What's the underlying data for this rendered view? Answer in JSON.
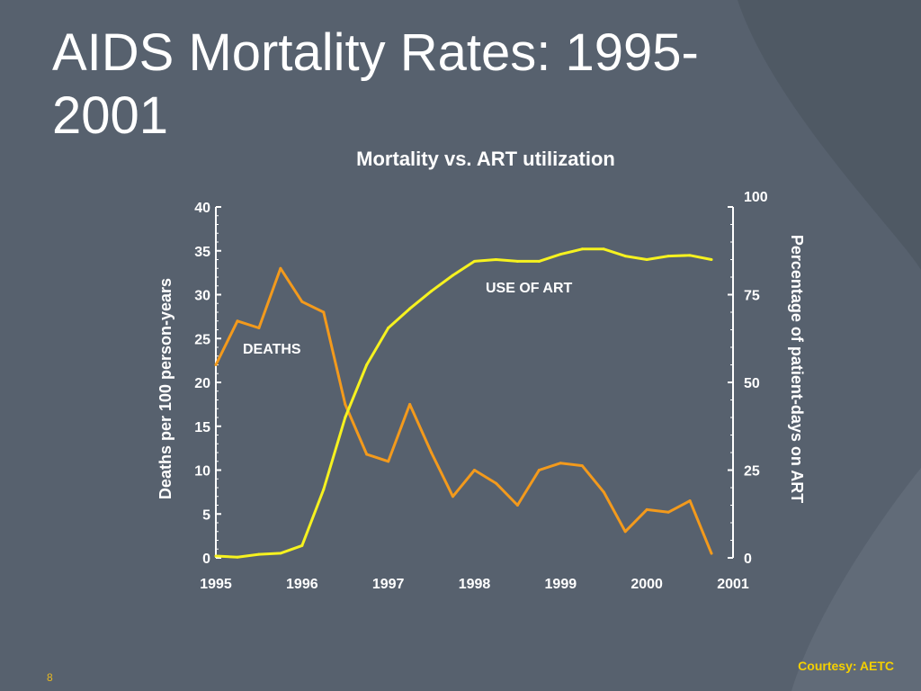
{
  "slide": {
    "title_line1": "AIDS Mortality Rates: 1995-",
    "title_line2": "2001",
    "courtesy": "Courtesy: AETC",
    "page_number": "8"
  },
  "colors": {
    "background": "#5a6572",
    "text": "#ffffff",
    "deaths_line": "#f39a1c",
    "art_line": "#f6f21f",
    "accent": "#f5d000"
  },
  "chart_data": {
    "type": "line",
    "title": "Mortality vs. ART utilization",
    "xlabel": "",
    "ylabel_left": "Deaths per 100 person-years",
    "ylabel_right": "Percentage of patient-days on ART",
    "xlim": [
      1995,
      2001
    ],
    "ylim_left": [
      0,
      40
    ],
    "ylim_right": [
      0,
      100
    ],
    "x_ticks": [
      "1995",
      "1996",
      "1997",
      "1998",
      "1999",
      "2000",
      "2001"
    ],
    "y_ticks_left": [
      "0",
      "5",
      "10",
      "15",
      "20",
      "25",
      "30",
      "35",
      "40"
    ],
    "y_ticks_right": [
      "0",
      "25",
      "50",
      "75",
      "100"
    ],
    "grid": false,
    "series": [
      {
        "name": "DEATHS",
        "axis": "left",
        "color": "#f39a1c",
        "x": [
          1995.0,
          1995.25,
          1995.5,
          1995.75,
          1996.0,
          1996.25,
          1996.5,
          1996.75,
          1997.0,
          1997.25,
          1997.5,
          1997.75,
          1998.0,
          1998.25,
          1998.5,
          1998.75,
          1999.0,
          1999.25,
          1999.5,
          1999.75,
          2000.0,
          2000.25,
          2000.5,
          2000.75
        ],
        "values": [
          22.0,
          27.0,
          26.2,
          33.0,
          29.2,
          28.0,
          17.5,
          11.8,
          11.0,
          17.5,
          12.0,
          7.0,
          10.0,
          8.5,
          6.0,
          10.0,
          10.8,
          10.5,
          7.5,
          3.0,
          5.5,
          5.2,
          6.5,
          0.5
        ]
      },
      {
        "name": "USE OF ART",
        "axis": "right",
        "color": "#f6f21f",
        "x": [
          1995.0,
          1995.25,
          1995.5,
          1995.75,
          1996.0,
          1996.25,
          1996.5,
          1996.75,
          1997.0,
          1997.25,
          1997.5,
          1997.75,
          1998.0,
          1998.25,
          1998.5,
          1998.75,
          1999.0,
          1999.25,
          1999.5,
          1999.75,
          2000.0,
          2000.25,
          2000.5,
          2000.75
        ],
        "values": [
          0.5,
          0.2,
          1.0,
          1.3,
          3.5,
          19.5,
          40.0,
          55.0,
          65.5,
          71.0,
          76.0,
          80.5,
          84.5,
          85.0,
          84.5,
          84.5,
          86.5,
          88.0,
          88.0,
          86.0,
          85.0,
          86.0,
          86.2,
          85.0
        ]
      }
    ],
    "annotations": [
      "DEATHS",
      "USE OF ART"
    ]
  }
}
